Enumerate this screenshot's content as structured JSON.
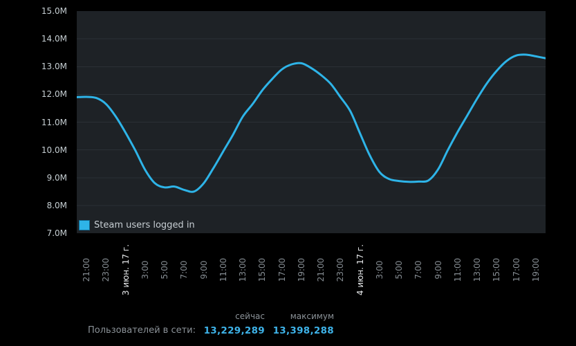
{
  "colors": {
    "background": "#000000",
    "plot_background": "#1e2226",
    "gridline": "#2b3036",
    "accent_line": "#2eb4e8",
    "y_label": "#c6cfd3",
    "x_label": "#858c92",
    "x_date_label": "#e8eaec",
    "legend_text": "#c7ced3",
    "stats_gray": "#8b9298",
    "stats_value": "#3eb3e9"
  },
  "chart_data": {
    "type": "line",
    "title": "",
    "xlabel": "",
    "ylabel": "",
    "ylim": [
      7,
      15
    ],
    "x_hours_span": 48,
    "points_interval_hours": 1,
    "grid": "horizontal-only",
    "legend_position": "bottom-left",
    "y_tick_labels": [
      "15.0M",
      "14.0M",
      "13.0M",
      "12.0M",
      "11.0M",
      "10.0M",
      "9.0M",
      "8.0M",
      "7.0M"
    ],
    "x_ticks": [
      {
        "hour": 1,
        "label": "21:00",
        "date": false
      },
      {
        "hour": 3,
        "label": "23:00",
        "date": false
      },
      {
        "hour": 5,
        "label": "3 июн. 17 г.",
        "date": true
      },
      {
        "hour": 7,
        "label": "3:00",
        "date": false
      },
      {
        "hour": 9,
        "label": "5:00",
        "date": false
      },
      {
        "hour": 11,
        "label": "7:00",
        "date": false
      },
      {
        "hour": 13,
        "label": "9:00",
        "date": false
      },
      {
        "hour": 15,
        "label": "11:00",
        "date": false
      },
      {
        "hour": 17,
        "label": "13:00",
        "date": false
      },
      {
        "hour": 19,
        "label": "15:00",
        "date": false
      },
      {
        "hour": 21,
        "label": "17:00",
        "date": false
      },
      {
        "hour": 23,
        "label": "19:00",
        "date": false
      },
      {
        "hour": 25,
        "label": "21:00",
        "date": false
      },
      {
        "hour": 27,
        "label": "23:00",
        "date": false
      },
      {
        "hour": 29,
        "label": "4 июн. 17 г.",
        "date": true
      },
      {
        "hour": 31,
        "label": "3:00",
        "date": false
      },
      {
        "hour": 33,
        "label": "5:00",
        "date": false
      },
      {
        "hour": 35,
        "label": "7:00",
        "date": false
      },
      {
        "hour": 37,
        "label": "9:00",
        "date": false
      },
      {
        "hour": 39,
        "label": "11:00",
        "date": false
      },
      {
        "hour": 41,
        "label": "13:00",
        "date": false
      },
      {
        "hour": 43,
        "label": "15:00",
        "date": false
      },
      {
        "hour": 45,
        "label": "17:00",
        "date": false
      },
      {
        "hour": 47,
        "label": "19:00",
        "date": false
      }
    ],
    "series": [
      {
        "name": "Steam users logged in",
        "units": "millions",
        "values": [
          11.9,
          11.91,
          11.87,
          11.65,
          11.2,
          10.62,
          9.98,
          9.28,
          8.8,
          8.65,
          8.68,
          8.56,
          8.5,
          8.8,
          9.35,
          9.95,
          10.55,
          11.2,
          11.65,
          12.15,
          12.55,
          12.9,
          13.08,
          13.12,
          12.95,
          12.7,
          12.38,
          11.9,
          11.4,
          10.6,
          9.8,
          9.2,
          8.95,
          8.88,
          8.85,
          8.86,
          8.9,
          9.3,
          10.0,
          10.65,
          11.25,
          11.85,
          12.4,
          12.85,
          13.2,
          13.4,
          13.43,
          13.37,
          13.3
        ]
      }
    ]
  },
  "legend": {
    "label": "Steam users logged in"
  },
  "stats": {
    "col_now": "сейчас",
    "col_max": "максимум",
    "row_label": "Пользователей в сети:",
    "now_value": "13,229,289",
    "max_value": "13,398,288"
  }
}
